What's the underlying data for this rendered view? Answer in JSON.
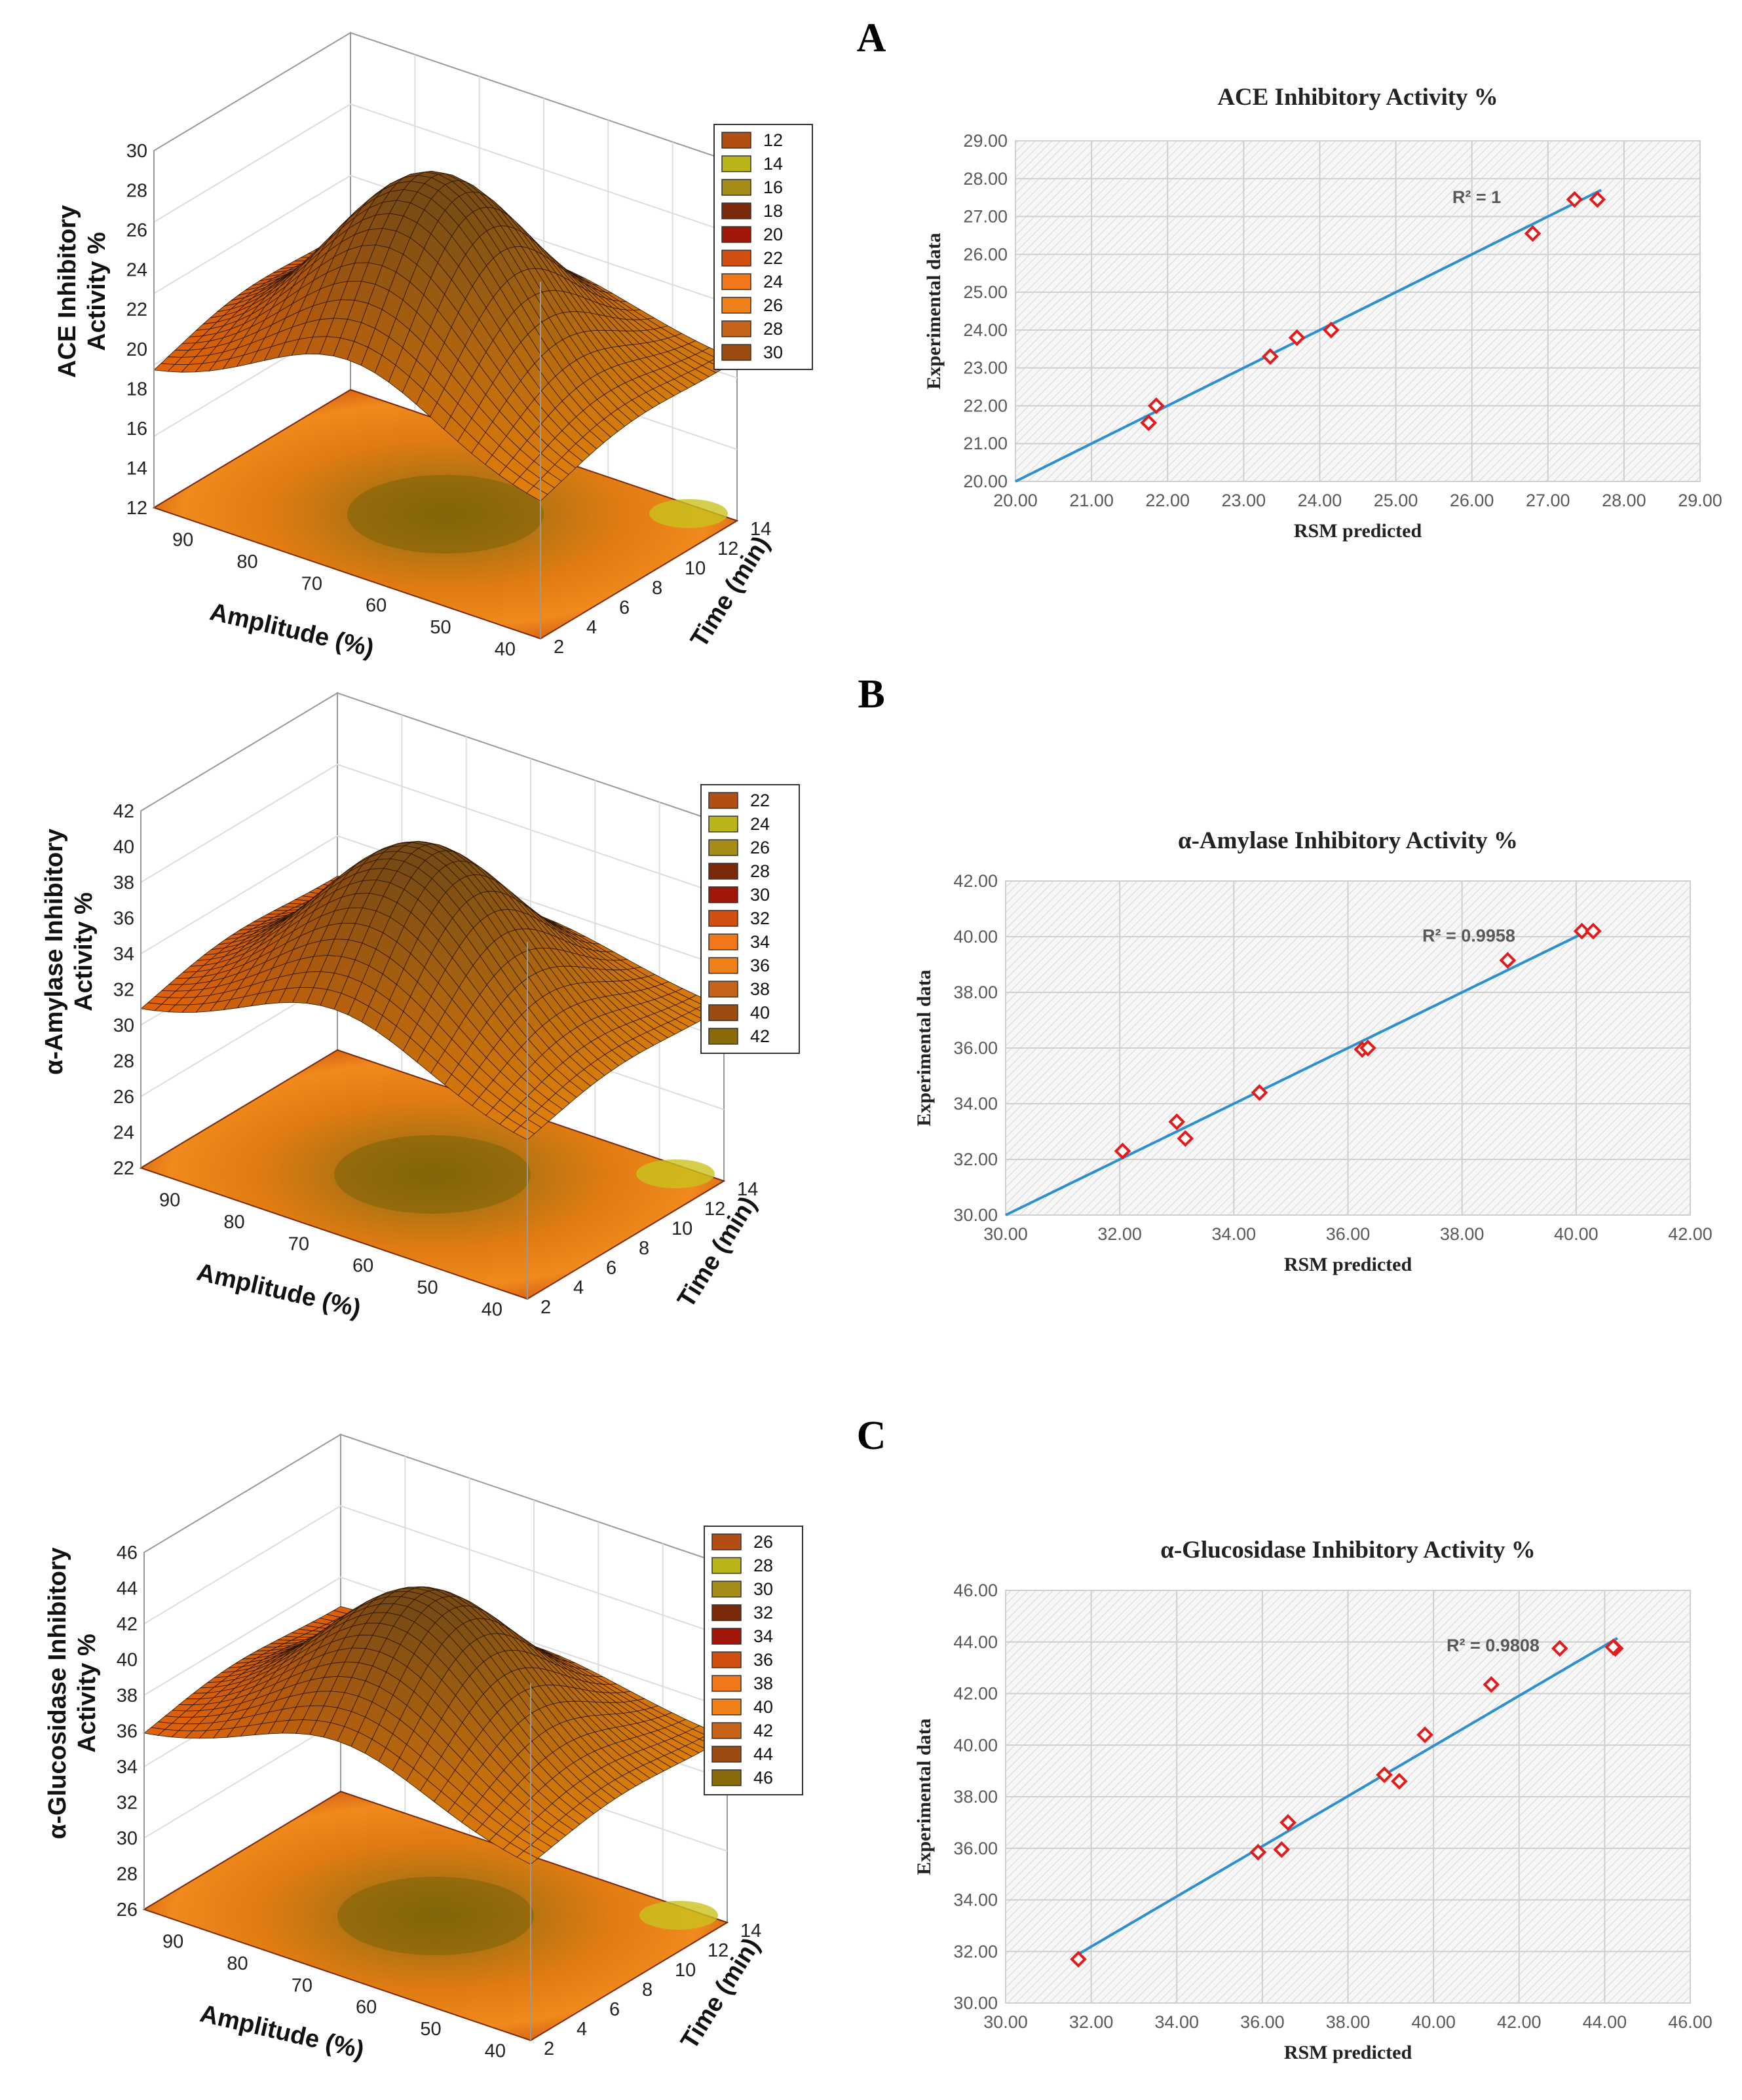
{
  "figure": {
    "panels": [
      {
        "label": "A",
        "surface": {
          "z_label_line1": "ACE Inhibitory",
          "z_label_line2": "Activity %",
          "x_label": "Amplitude (%)",
          "y_label": "Time (min)",
          "z_ticks": [
            "12",
            "14",
            "16",
            "18",
            "20",
            "22",
            "24",
            "26",
            "28",
            "30"
          ],
          "x_ticks": [
            "90",
            "80",
            "70",
            "60",
            "50",
            "40"
          ],
          "y_ticks": [
            "2",
            "4",
            "6",
            "8",
            "10",
            "12",
            "14"
          ],
          "legend": [
            "12",
            "14",
            "16",
            "18",
            "20",
            "22",
            "24",
            "26",
            "28",
            "30"
          ],
          "z_range": [
            12,
            30
          ],
          "peak": 28.8,
          "edge_low": 18.5,
          "back_high": 22.5
        }
      },
      {
        "label": "B",
        "surface": {
          "z_label_line1": "α-Amylase Inhibitory",
          "z_label_line2": "Activity %",
          "x_label": "Amplitude (%)",
          "y_label": "Time (min)",
          "z_ticks": [
            "22",
            "24",
            "26",
            "28",
            "30",
            "32",
            "34",
            "36",
            "38",
            "40",
            "42"
          ],
          "x_ticks": [
            "90",
            "80",
            "70",
            "60",
            "50",
            "40"
          ],
          "y_ticks": [
            "2",
            "4",
            "6",
            "8",
            "10",
            "12",
            "14"
          ],
          "legend": [
            "22",
            "24",
            "26",
            "28",
            "30",
            "32",
            "34",
            "36",
            "38",
            "40",
            "42"
          ],
          "z_range": [
            22,
            42
          ],
          "peak": 40.3,
          "edge_low": 30.5,
          "back_high": 33.5
        }
      },
      {
        "label": "C",
        "surface": {
          "z_label_line1": "α-Glucosidase Inhibitory",
          "z_label_line2": "Activity %",
          "x_label": "Amplitude (%)",
          "y_label": "Time (min)",
          "z_ticks": [
            "26",
            "28",
            "30",
            "32",
            "34",
            "36",
            "38",
            "40",
            "42",
            "44",
            "46"
          ],
          "x_ticks": [
            "90",
            "80",
            "70",
            "60",
            "50",
            "40"
          ],
          "y_ticks": [
            "2",
            "4",
            "6",
            "8",
            "10",
            "12",
            "14"
          ],
          "legend": [
            "26",
            "28",
            "30",
            "32",
            "34",
            "36",
            "38",
            "40",
            "42",
            "44",
            "46"
          ],
          "z_range": [
            26,
            46
          ],
          "peak": 44.2,
          "edge_low": 35.5,
          "back_high": 37.5
        }
      }
    ]
  },
  "chart_data": [
    {
      "type": "scatter",
      "title": "ACE Inhibitory Activity %",
      "xlabel": "RSM predicted",
      "ylabel": "Experimental data",
      "xlim": [
        20,
        29
      ],
      "ylim": [
        20,
        29
      ],
      "x_ticks": [
        "20.00",
        "21.00",
        "22.00",
        "23.00",
        "24.00",
        "25.00",
        "26.00",
        "27.00",
        "28.00",
        "29.00"
      ],
      "y_ticks": [
        "20.00",
        "21.00",
        "22.00",
        "23.00",
        "24.00",
        "25.00",
        "26.00",
        "27.00",
        "28.00",
        "29.00"
      ],
      "r2_label": "R² = 1",
      "trendline": {
        "x": [
          20.0,
          27.7
        ],
        "y": [
          20.0,
          27.7
        ]
      },
      "points": [
        {
          "x": 21.75,
          "y": 21.55
        },
        {
          "x": 21.85,
          "y": 22.0
        },
        {
          "x": 23.35,
          "y": 23.3
        },
        {
          "x": 23.7,
          "y": 23.8
        },
        {
          "x": 24.15,
          "y": 24.0
        },
        {
          "x": 26.8,
          "y": 26.55
        },
        {
          "x": 27.35,
          "y": 27.45
        },
        {
          "x": 27.65,
          "y": 27.45
        }
      ]
    },
    {
      "type": "scatter",
      "title": "α-Amylase Inhibitory Activity %",
      "xlabel": "RSM predicted",
      "ylabel": "Experimental data",
      "xlim": [
        30,
        42
      ],
      "ylim": [
        30,
        42
      ],
      "x_ticks": [
        "30.00",
        "32.00",
        "34.00",
        "36.00",
        "38.00",
        "40.00",
        "42.00"
      ],
      "y_ticks": [
        "30.00",
        "32.00",
        "34.00",
        "36.00",
        "38.00",
        "40.00",
        "42.00"
      ],
      "r2_label": "R² = 0.9958",
      "trendline": {
        "x": [
          30.0,
          40.3
        ],
        "y": [
          30.0,
          40.3
        ]
      },
      "points": [
        {
          "x": 32.05,
          "y": 32.3
        },
        {
          "x": 33.0,
          "y": 33.35
        },
        {
          "x": 33.15,
          "y": 32.75
        },
        {
          "x": 34.45,
          "y": 34.4
        },
        {
          "x": 36.25,
          "y": 35.95
        },
        {
          "x": 36.35,
          "y": 36.0
        },
        {
          "x": 38.8,
          "y": 39.15
        },
        {
          "x": 40.1,
          "y": 40.2
        },
        {
          "x": 40.3,
          "y": 40.2
        }
      ]
    },
    {
      "type": "scatter",
      "title": "α-Glucosidase Inhibitory Activity %",
      "xlabel": "RSM predicted",
      "ylabel": "Experimental data",
      "xlim": [
        30,
        46
      ],
      "ylim": [
        30,
        46
      ],
      "x_ticks": [
        "30.00",
        "32.00",
        "34.00",
        "36.00",
        "38.00",
        "40.00",
        "42.00",
        "44.00",
        "46.00"
      ],
      "y_ticks": [
        "30.00",
        "32.00",
        "34.00",
        "36.00",
        "38.00",
        "40.00",
        "42.00",
        "44.00",
        "46.00"
      ],
      "r2_label": "R² = 0.9808",
      "trendline": {
        "x": [
          31.6,
          44.3
        ],
        "y": [
          31.8,
          44.15
        ]
      },
      "points": [
        {
          "x": 31.7,
          "y": 31.7
        },
        {
          "x": 35.9,
          "y": 35.85
        },
        {
          "x": 36.45,
          "y": 35.95
        },
        {
          "x": 36.6,
          "y": 37.0
        },
        {
          "x": 38.85,
          "y": 38.85
        },
        {
          "x": 39.2,
          "y": 38.6
        },
        {
          "x": 39.8,
          "y": 40.4
        },
        {
          "x": 41.35,
          "y": 42.35
        },
        {
          "x": 42.95,
          "y": 43.75
        },
        {
          "x": 44.25,
          "y": 43.75
        },
        {
          "x": 44.2,
          "y": 43.8
        }
      ]
    }
  ]
}
